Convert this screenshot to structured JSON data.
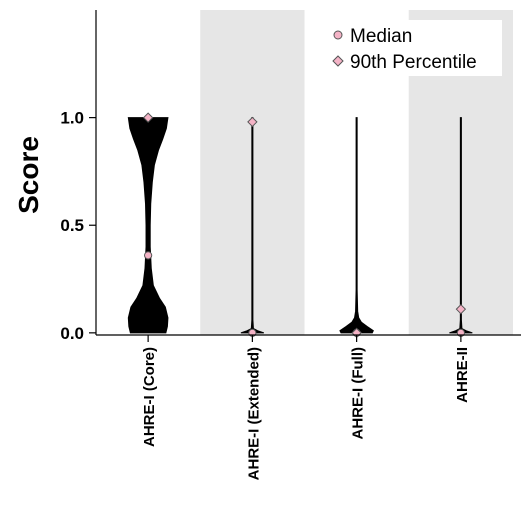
{
  "chart_data": {
    "type": "violin",
    "title": "",
    "xlabel": "",
    "ylabel": "Score",
    "ylim": [
      -0.01,
      1.5
    ],
    "yticks": [
      0.0,
      0.5,
      1.0
    ],
    "ytick_labels": [
      "0.0",
      "0.5",
      "1.0"
    ],
    "categories": [
      "AHRE-I (Core)",
      "AHRE-I (Extended)",
      "AHRE-I (Full)",
      "AHRE-II"
    ],
    "shaded_bands": [
      1,
      3
    ],
    "legend": {
      "position": "top-right",
      "entries": [
        {
          "label": "Median",
          "marker": "circle"
        },
        {
          "label": "90th Percentile",
          "marker": "diamond"
        }
      ]
    },
    "series": [
      {
        "category": "AHRE-I (Core)",
        "median": 0.36,
        "p90": 1.0,
        "profile": [
          [
            0.0,
            0.34
          ],
          [
            0.03,
            0.37
          ],
          [
            0.07,
            0.38
          ],
          [
            0.12,
            0.33
          ],
          [
            0.16,
            0.22
          ],
          [
            0.22,
            0.1
          ],
          [
            0.3,
            0.06
          ],
          [
            0.4,
            0.04
          ],
          [
            0.5,
            0.04
          ],
          [
            0.6,
            0.05
          ],
          [
            0.7,
            0.08
          ],
          [
            0.78,
            0.12
          ],
          [
            0.85,
            0.2
          ],
          [
            0.9,
            0.28
          ],
          [
            0.95,
            0.35
          ],
          [
            1.0,
            0.38
          ]
        ]
      },
      {
        "category": "AHRE-I (Extended)",
        "median": 0.0,
        "p90": 0.98,
        "profile": [
          [
            0.0,
            0.22
          ],
          [
            0.01,
            0.1
          ],
          [
            0.02,
            0.02
          ],
          [
            0.06,
            0.01
          ],
          [
            1.0,
            0.01
          ]
        ]
      },
      {
        "category": "AHRE-I (Full)",
        "median": 0.0,
        "p90": 0.0,
        "profile": [
          [
            0.0,
            0.3
          ],
          [
            0.01,
            0.32
          ],
          [
            0.03,
            0.2
          ],
          [
            0.05,
            0.09
          ],
          [
            0.07,
            0.04
          ],
          [
            0.1,
            0.02
          ],
          [
            0.2,
            0.01
          ],
          [
            1.0,
            0.01
          ]
        ]
      },
      {
        "category": "AHRE-II",
        "median": 0.0,
        "p90": 0.11,
        "profile": [
          [
            0.0,
            0.22
          ],
          [
            0.01,
            0.1
          ],
          [
            0.02,
            0.02
          ],
          [
            0.06,
            0.01
          ],
          [
            1.0,
            0.01
          ]
        ]
      }
    ],
    "colors": {
      "violin": "#000000",
      "band": "#e6e6e6",
      "marker_fill": "#f4b3c6",
      "marker_stroke": "#555555"
    }
  }
}
